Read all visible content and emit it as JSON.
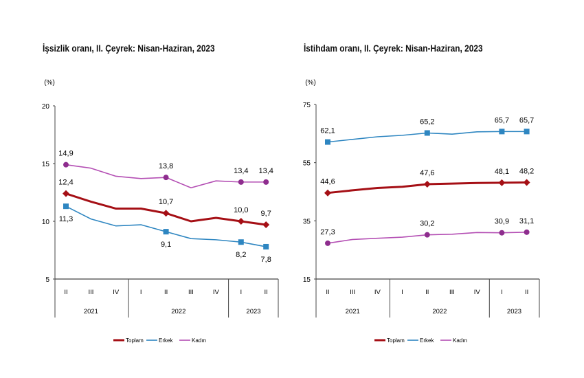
{
  "chart_data": [
    {
      "type": "line",
      "title": "İşsizlik oranı, II. Çeyrek: Nisan-Haziran, 2023",
      "ylabel": "(%)",
      "ylim": [
        5,
        20
      ],
      "yticks": [
        "5",
        "10",
        "15",
        "20"
      ],
      "categories": [
        "II",
        "III",
        "IV",
        "I",
        "II",
        "III",
        "IV",
        "I",
        "II"
      ],
      "years": [
        {
          "label": "2021",
          "span": 3
        },
        {
          "label": "2022",
          "span": 4
        },
        {
          "label": "2023",
          "span": 2
        }
      ],
      "grid": false,
      "legend_placement": "bottom",
      "series": [
        {
          "name": "Toplam",
          "color": "#a50f15",
          "marker": "diamond",
          "values": [
            12.4,
            11.7,
            11.1,
            11.1,
            10.7,
            10.0,
            10.3,
            10.0,
            9.7
          ],
          "labels": [
            "12,4",
            "",
            "",
            "",
            "10,7",
            "",
            "",
            "10,0",
            "9,7"
          ],
          "label_pos": "above"
        },
        {
          "name": "Erkek",
          "color": "#2e86c1",
          "marker": "square",
          "values": [
            11.3,
            10.2,
            9.6,
            9.7,
            9.1,
            8.5,
            8.4,
            8.2,
            7.8
          ],
          "labels": [
            "11,3",
            "",
            "",
            "",
            "9,1",
            "",
            "",
            "8,2",
            "7,8"
          ],
          "label_pos": "below"
        },
        {
          "name": "Kadın",
          "color": "#b44fb4",
          "marker": "circle",
          "values": [
            14.9,
            14.6,
            13.9,
            13.7,
            13.8,
            12.9,
            13.5,
            13.4,
            13.4
          ],
          "labels": [
            "14,9",
            "",
            "",
            "",
            "13,8",
            "",
            "",
            "13,4",
            "13,4"
          ],
          "label_pos": "above"
        }
      ]
    },
    {
      "type": "line",
      "title": "İstihdam oranı, II. Çeyrek: Nisan-Haziran, 2023",
      "ylabel": "(%)",
      "ylim": [
        15,
        75
      ],
      "yticks": [
        "15",
        "35",
        "55",
        "75"
      ],
      "categories": [
        "II",
        "III",
        "IV",
        "I",
        "II",
        "III",
        "IV",
        "I",
        "II"
      ],
      "years": [
        {
          "label": "2021",
          "span": 3
        },
        {
          "label": "2022",
          "span": 4
        },
        {
          "label": "2023",
          "span": 2
        }
      ],
      "grid": false,
      "legend_placement": "bottom",
      "series": [
        {
          "name": "Toplam",
          "color": "#a50f15",
          "marker": "diamond",
          "values": [
            44.6,
            45.5,
            46.3,
            46.7,
            47.6,
            47.8,
            48.0,
            48.1,
            48.2
          ],
          "labels": [
            "44,6",
            "",
            "",
            "",
            "47,6",
            "",
            "",
            "48,1",
            "48,2"
          ],
          "label_pos": "above"
        },
        {
          "name": "Erkek",
          "color": "#2e86c1",
          "marker": "square",
          "values": [
            62.1,
            63.0,
            63.9,
            64.4,
            65.2,
            64.8,
            65.6,
            65.7,
            65.7
          ],
          "labels": [
            "62,1",
            "",
            "",
            "",
            "65,2",
            "",
            "",
            "65,7",
            "65,7"
          ],
          "label_pos": "above"
        },
        {
          "name": "Kadın",
          "color": "#b44fb4",
          "marker": "circle",
          "values": [
            27.3,
            28.6,
            29.0,
            29.4,
            30.2,
            30.4,
            31.0,
            30.9,
            31.1
          ],
          "labels": [
            "27,3",
            "",
            "",
            "",
            "30,2",
            "",
            "",
            "30,9",
            "31,1"
          ],
          "label_pos": "above"
        }
      ]
    }
  ]
}
